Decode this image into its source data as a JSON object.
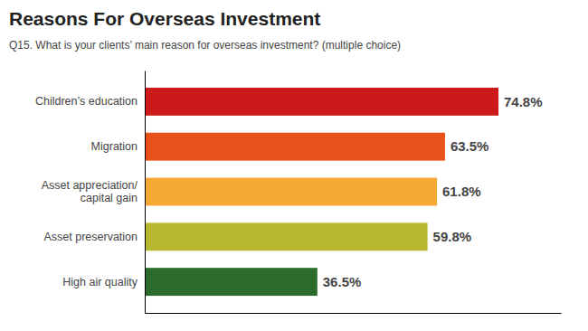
{
  "chart_data": {
    "type": "bar",
    "orientation": "horizontal",
    "title": "Reasons For Overseas Investment",
    "subtitle": "Q15. What is your clients’ main reason for overseas investment? (multiple choice)",
    "categories": [
      "Children’s education",
      "Migration",
      "Asset appreciation/\ncapital gain",
      "Asset preservation",
      "High air quality"
    ],
    "values": [
      74.8,
      63.5,
      61.8,
      59.8,
      36.5
    ],
    "value_labels": [
      "74.8%",
      "63.5%",
      "61.8%",
      "59.8%",
      "36.5%"
    ],
    "colors": [
      "#cc1a1a",
      "#e8511a",
      "#f5a832",
      "#b8b830",
      "#2b6b2b"
    ],
    "xlim": [
      0,
      88
    ],
    "xticks": [],
    "grid": false,
    "data_labels": true,
    "tick_labels": "y"
  }
}
